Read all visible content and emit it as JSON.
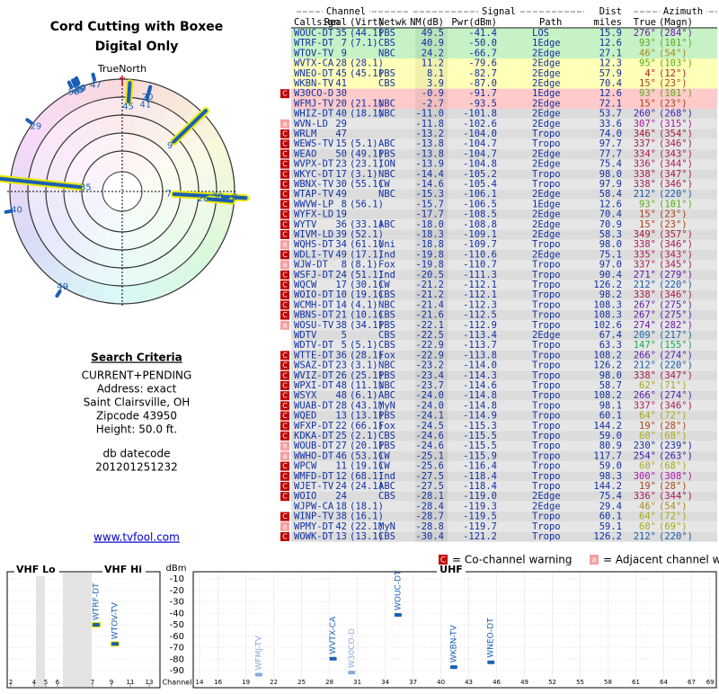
{
  "header": {
    "title": "Cord Cutting with Boxee",
    "subtitle": "Digital Only"
  },
  "polar": {
    "north_label": "TrueNorth",
    "north": "N"
  },
  "search": {
    "heading": "Search Criteria",
    "lines": [
      "CURRENT+PENDING",
      "Address: exact",
      "Saint Clairsville, OH",
      "Zipcode 43950",
      "Height: 50.0 ft."
    ],
    "datecode_label": "db datecode",
    "datecode": "201201251232",
    "link": "www.tvfool.com"
  },
  "table": {
    "groups": [
      "Channel",
      "Signal",
      "Dist",
      "Azimuth"
    ],
    "columns": [
      "Callsign",
      "Real",
      "(Virt)",
      "Netwk",
      "NM(dB)",
      "Pwr(dBm)",
      "Path",
      "miles",
      "True",
      "(Magn)"
    ],
    "rows": [
      [
        null,
        "WOUC-DT",
        "35",
        "(44.1)",
        "PBS",
        "49.5",
        "-41.4",
        "LOS",
        "15.9",
        "276°",
        "(284°)"
      ],
      [
        null,
        "WTRF-DT",
        "7",
        "(7.1)",
        "CBS",
        "40.9",
        "-50.0",
        "1Edge",
        "12.6",
        "93°",
        "(101°)"
      ],
      [
        null,
        "WTOV-TV",
        "9",
        null,
        "NBC",
        "24.2",
        "-66.7",
        "2Edge",
        "27.1",
        "46°",
        "(54°)"
      ],
      [
        null,
        "WVTX-CA",
        "28",
        "(28.1)",
        null,
        "11.2",
        "-79.6",
        "2Edge",
        "12.3",
        "95°",
        "(103°)"
      ],
      [
        null,
        "WNEO-DT",
        "45",
        "(45.1)",
        "PBS",
        "8.1",
        "-82.7",
        "2Edge",
        "57.9",
        "4°",
        "(12°)"
      ],
      [
        null,
        "WKBN-TV",
        "41",
        null,
        "CBS",
        "3.9",
        "-87.0",
        "2Edge",
        "70.4",
        "15°",
        "(23°)"
      ],
      [
        "C",
        "W30CO-D",
        "30",
        null,
        null,
        "-0.9",
        "-91.7",
        "1Edge",
        "12.6",
        "93°",
        "(101°)"
      ],
      [
        null,
        "WFMJ-TV",
        "20",
        "(21.1)",
        "NBC",
        "-2.7",
        "-93.5",
        "2Edge",
        "72.1",
        "15°",
        "(23°)"
      ],
      [
        null,
        "WHIZ-DT",
        "40",
        "(18.1)",
        "NBC",
        "-11.0",
        "-101.8",
        "2Edge",
        "53.7",
        "260°",
        "(268°)"
      ],
      [
        "a",
        "WVN-LD",
        "29",
        null,
        null,
        "-11.8",
        "-102.6",
        "2Edge",
        "33.6",
        "307°",
        "(315°)"
      ],
      [
        "C",
        "WRLM",
        "47",
        null,
        null,
        "-13.2",
        "-104.0",
        "Tropo",
        "74.0",
        "346°",
        "(354°)"
      ],
      [
        "C",
        "WEWS-TV",
        "15",
        "(5.1)",
        "ABC",
        "-13.8",
        "-104.7",
        "Tropo",
        "97.7",
        "337°",
        "(346°)"
      ],
      [
        "C",
        "WEAO",
        "50",
        "(49.1)",
        "PBS",
        "-13.8",
        "-104.7",
        "2Edge",
        "77.7",
        "334°",
        "(343°)"
      ],
      [
        "C",
        "WVPX-DT",
        "23",
        "(23.1)",
        "ION",
        "-13.9",
        "-104.8",
        "2Edge",
        "75.4",
        "336°",
        "(344°)"
      ],
      [
        "C",
        "WKYC-DT",
        "17",
        "(3.1)",
        "NBC",
        "-14.4",
        "-105.2",
        "Tropo",
        "98.0",
        "338°",
        "(347°)"
      ],
      [
        "C",
        "WBNX-TV",
        "30",
        "(55.1)",
        "CW",
        "-14.6",
        "-105.4",
        "Tropo",
        "97.9",
        "338°",
        "(346°)"
      ],
      [
        "C",
        "WTAP-TV",
        "49",
        null,
        "NBC",
        "-15.3",
        "-106.1",
        "2Edge",
        "58.4",
        "212°",
        "(220°)"
      ],
      [
        "C",
        "WWVW-LP",
        "8",
        "(56.1)",
        null,
        "-15.7",
        "-106.5",
        "1Edge",
        "12.6",
        "93°",
        "(101°)"
      ],
      [
        "C",
        "WYFX-LD",
        "19",
        null,
        null,
        "-17.7",
        "-108.5",
        "2Edge",
        "70.4",
        "15°",
        "(23°)"
      ],
      [
        "C",
        "WYTV",
        "36",
        "(33.1)",
        "ABC",
        "-18.0",
        "-108.8",
        "2Edge",
        "70.9",
        "15°",
        "(23°)"
      ],
      [
        "C",
        "WIVM-LD",
        "39",
        "(52.1)",
        null,
        "-18.3",
        "-109.1",
        "2Edge",
        "58.3",
        "349°",
        "(357°)"
      ],
      [
        "a",
        "WQHS-DT",
        "34",
        "(61.1)",
        "Uni",
        "-18.8",
        "-109.7",
        "Tropo",
        "98.0",
        "338°",
        "(346°)"
      ],
      [
        "C",
        "WDLI-TV",
        "49",
        "(17.1)",
        "Ind",
        "-19.8",
        "-110.6",
        "2Edge",
        "75.1",
        "335°",
        "(343°)"
      ],
      [
        "a",
        "WJW-DT",
        "8",
        "(8.1)",
        "Fox",
        "-19.8",
        "-110.7",
        "Tropo",
        "97.0",
        "337°",
        "(345°)"
      ],
      [
        "C",
        "WSFJ-DT",
        "24",
        "(51.1)",
        "Ind",
        "-20.5",
        "-111.3",
        "Tropo",
        "90.4",
        "271°",
        "(279°)"
      ],
      [
        "C",
        "WQCW",
        "17",
        "(30.1)",
        "CW",
        "-21.2",
        "-112.1",
        "Tropo",
        "126.2",
        "212°",
        "(220°)"
      ],
      [
        "C",
        "WOIO-DT",
        "10",
        "(19.1)",
        "CBS",
        "-21.2",
        "-112.1",
        "Tropo",
        "98.2",
        "338°",
        "(346°)"
      ],
      [
        "C",
        "WCMH-DT",
        "14",
        "(4.1)",
        "NBC",
        "-21.4",
        "-112.3",
        "Tropo",
        "108.3",
        "267°",
        "(275°)"
      ],
      [
        "C",
        "WBNS-DT",
        "21",
        "(10.1)",
        "CBS",
        "-21.6",
        "-112.5",
        "Tropo",
        "108.3",
        "267°",
        "(275°)"
      ],
      [
        "a",
        "WOSU-TV",
        "38",
        "(34.1)",
        "PBS",
        "-22.1",
        "-112.9",
        "Tropo",
        "102.6",
        "274°",
        "(282°)"
      ],
      [
        null,
        "WDTV",
        "5",
        null,
        "CBS",
        "-22.5",
        "-113.4",
        "2Edge",
        "67.4",
        "209°",
        "(217°)"
      ],
      [
        null,
        "WDTV-DT",
        "5",
        "(5.1)",
        "CBS",
        "-22.9",
        "-113.7",
        "Tropo",
        "63.3",
        "147°",
        "(155°)"
      ],
      [
        "C",
        "WTTE-DT",
        "36",
        "(28.1)",
        "Fox",
        "-22.9",
        "-113.8",
        "Tropo",
        "108.2",
        "266°",
        "(274°)"
      ],
      [
        "C",
        "WSAZ-DT",
        "23",
        "(3.1)",
        "NBC",
        "-23.2",
        "-114.0",
        "Tropo",
        "126.2",
        "212°",
        "(220°)"
      ],
      [
        "C",
        "WVIZ-DT",
        "26",
        "(25.1)",
        "PBS",
        "-23.4",
        "-114.3",
        "Tropo",
        "98.0",
        "338°",
        "(347°)"
      ],
      [
        "C",
        "WPXI-DT",
        "48",
        "(11.1)",
        "NBC",
        "-23.7",
        "-114.6",
        "Tropo",
        "58.7",
        "62°",
        "(71°)"
      ],
      [
        "C",
        "WSYX",
        "48",
        "(6.1)",
        "ABC",
        "-24.0",
        "-114.8",
        "Tropo",
        "108.2",
        "266°",
        "(274°)"
      ],
      [
        "C",
        "WUAB-DT",
        "28",
        "(43.1)",
        "MyN",
        "-24.0",
        "-114.8",
        "Tropo",
        "98.1",
        "337°",
        "(346°)"
      ],
      [
        "C",
        "WQED",
        "13",
        "(13.1)",
        "PBS",
        "-24.1",
        "-114.9",
        "Tropo",
        "60.1",
        "64°",
        "(72°)"
      ],
      [
        "C",
        "WFXP-DT",
        "22",
        "(66.1)",
        "Fox",
        "-24.5",
        "-115.3",
        "Tropo",
        "144.2",
        "19°",
        "(28°)"
      ],
      [
        "C",
        "KDKA-DT",
        "25",
        "(2.1)",
        "CBS",
        "-24.6",
        "-115.5",
        "Tropo",
        "59.0",
        "60°",
        "(68°)"
      ],
      [
        "a",
        "WOUB-DT",
        "27",
        "(20.1)",
        "PBS",
        "-24.6",
        "-115.5",
        "Tropo",
        "80.9",
        "230°",
        "(239°)"
      ],
      [
        "a",
        "WWHO-DT",
        "46",
        "(53.1)",
        "CW",
        "-25.1",
        "-115.9",
        "Tropo",
        "117.7",
        "254°",
        "(263°)"
      ],
      [
        "C",
        "WPCW",
        "11",
        "(19.1)",
        "CW",
        "-25.6",
        "-116.4",
        "Tropo",
        "59.0",
        "60°",
        "(68°)"
      ],
      [
        "C",
        "WMFD-DT",
        "12",
        "(68.1)",
        "Ind",
        "-27.5",
        "-118.4",
        "Tropo",
        "98.3",
        "300°",
        "(308°)"
      ],
      [
        "C",
        "WJET-TV",
        "24",
        "(24.1)",
        "ABC",
        "-27.5",
        "-118.4",
        "Tropo",
        "144.2",
        "19°",
        "(28°)"
      ],
      [
        "C",
        "WOIO",
        "24",
        null,
        "CBS",
        "-28.1",
        "-119.0",
        "2Edge",
        "75.4",
        "336°",
        "(344°)"
      ],
      [
        null,
        "WJPW-CA",
        "18",
        "(18.1)",
        null,
        "-28.4",
        "-119.3",
        "2Edge",
        "29.4",
        "46°",
        "(54°)"
      ],
      [
        "C",
        "WINP-TV",
        "38",
        "(16.1)",
        null,
        "-28.7",
        "-119.5",
        "Tropo",
        "60.1",
        "64°",
        "(72°)"
      ],
      [
        "a",
        "WPMY-DT",
        "42",
        "(22.1)",
        "MyN",
        "-28.8",
        "-119.7",
        "Tropo",
        "59.1",
        "60°",
        "(69°)"
      ],
      [
        "C",
        "WOWK-DT",
        "13",
        "(13.1)",
        "CBS",
        "-30.4",
        "-121.2",
        "Tropo",
        "126.2",
        "212°",
        "(220°)"
      ]
    ]
  },
  "legend": {
    "co_icon": "C",
    "co": "= Co-channel warning",
    "adj_icon": "a",
    "adj": "= Adjacent channel warning"
  },
  "spectrum": {
    "vhf_lo": "VHF Lo",
    "vhf_hi": "VHF Hi",
    "uhf": "UHF",
    "unit": "dBm",
    "channel_label": "Channel",
    "yticks": [
      -10,
      -20,
      -30,
      -40,
      -50,
      -60,
      -70,
      -80,
      -90
    ],
    "vhf_ticks": [
      2,
      4,
      5,
      6,
      7,
      9,
      11,
      13
    ],
    "uhf_ticks": [
      14,
      16,
      19,
      22,
      25,
      28,
      31,
      34,
      37,
      40,
      43,
      46,
      49,
      52,
      55,
      58,
      61,
      64,
      67,
      69
    ]
  }
}
